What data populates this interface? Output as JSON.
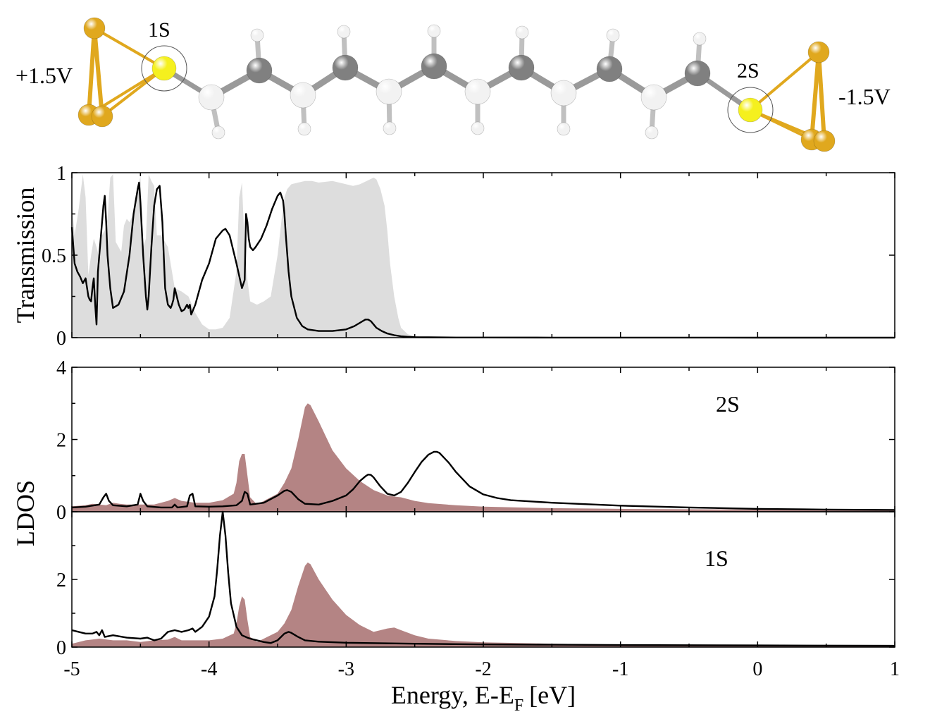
{
  "molecule": {
    "left_voltage": "+1.5V",
    "right_voltage": "-1.5V",
    "left_atom_label": "1S",
    "right_atom_label": "2S",
    "colors": {
      "gold": "#E0A81E",
      "sulfur": "#F5F01E",
      "carbon": "#808080",
      "hydrogen": "#F2F2F2",
      "bond": "#9A9A9A"
    }
  },
  "chart_data": [
    {
      "type": "area",
      "name": "transmission",
      "ylabel": "Transmission",
      "xlim": [
        -5,
        1
      ],
      "ylim": [
        0,
        1
      ],
      "yticks": [
        0,
        0.5,
        1
      ],
      "ytick_labels": [
        "0",
        "0.5",
        "1"
      ],
      "series": [
        {
          "name": "Transmission (filled, gray)",
          "style": "fill",
          "color": "#DDDDDD",
          "x": [
            -5,
            -4.98,
            -4.95,
            -4.92,
            -4.9,
            -4.88,
            -4.86,
            -4.84,
            -4.82,
            -4.8,
            -4.78,
            -4.76,
            -4.74,
            -4.72,
            -4.7,
            -4.68,
            -4.66,
            -4.64,
            -4.62,
            -4.6,
            -4.58,
            -4.55,
            -4.52,
            -4.5,
            -4.48,
            -4.46,
            -4.44,
            -4.42,
            -4.4,
            -4.38,
            -4.35,
            -4.3,
            -4.25,
            -4.2,
            -4.15,
            -4.1,
            -4.05,
            -4,
            -3.95,
            -3.9,
            -3.85,
            -3.8,
            -3.78,
            -3.76,
            -3.74,
            -3.72,
            -3.7,
            -3.65,
            -3.6,
            -3.55,
            -3.5,
            -3.47,
            -3.45,
            -3.43,
            -3.4,
            -3.35,
            -3.3,
            -3.25,
            -3.2,
            -3.1,
            -3,
            -2.95,
            -2.9,
            -2.85,
            -2.8,
            -2.78,
            -2.75,
            -2.72,
            -2.7,
            -2.68,
            -2.65,
            -2.62,
            -2.6,
            -2.55,
            -2.5,
            -2.4,
            -2,
            -1,
            0,
            1
          ],
          "y": [
            0.82,
            0.62,
            0.78,
            0.99,
            0.85,
            0.38,
            0.5,
            0.6,
            0.55,
            0.48,
            0.62,
            0.65,
            0.72,
            0.97,
            0.99,
            0.58,
            0.55,
            0.52,
            0.68,
            0.72,
            0.7,
            0.75,
            0.9,
            0.98,
            0.55,
            0.6,
            0.99,
            0.95,
            0.92,
            0.62,
            0.62,
            0.55,
            0.3,
            0.28,
            0.25,
            0.15,
            0.08,
            0.05,
            0.05,
            0.06,
            0.12,
            0.4,
            0.85,
            0.94,
            0.55,
            0.35,
            0.22,
            0.2,
            0.22,
            0.25,
            0.5,
            0.72,
            0.85,
            0.9,
            0.93,
            0.94,
            0.95,
            0.95,
            0.94,
            0.95,
            0.93,
            0.92,
            0.93,
            0.95,
            0.97,
            0.96,
            0.9,
            0.8,
            0.65,
            0.45,
            0.25,
            0.12,
            0.06,
            0.02,
            0.01,
            0,
            0,
            0,
            0,
            0
          ]
        },
        {
          "name": "Transmission (line, black)",
          "style": "line",
          "color": "#000000",
          "x": [
            -5,
            -4.98,
            -4.96,
            -4.94,
            -4.92,
            -4.9,
            -4.88,
            -4.87,
            -4.86,
            -4.85,
            -4.84,
            -4.83,
            -4.82,
            -4.81,
            -4.79,
            -4.77,
            -4.76,
            -4.75,
            -4.74,
            -4.72,
            -4.7,
            -4.66,
            -4.62,
            -4.58,
            -4.55,
            -4.52,
            -4.51,
            -4.5,
            -4.48,
            -4.46,
            -4.45,
            -4.44,
            -4.42,
            -4.4,
            -4.38,
            -4.36,
            -4.34,
            -4.33,
            -4.32,
            -4.3,
            -4.28,
            -4.27,
            -4.26,
            -4.25,
            -4.22,
            -4.2,
            -4.18,
            -4.16,
            -4.15,
            -4.14,
            -4.13,
            -4.1,
            -4.05,
            -4.0,
            -3.95,
            -3.9,
            -3.88,
            -3.85,
            -3.8,
            -3.76,
            -3.74,
            -3.73,
            -3.72,
            -3.71,
            -3.7,
            -3.68,
            -3.66,
            -3.62,
            -3.58,
            -3.54,
            -3.5,
            -3.48,
            -3.46,
            -3.45,
            -3.44,
            -3.42,
            -3.4,
            -3.36,
            -3.32,
            -3.28,
            -3.2,
            -3.1,
            -3.0,
            -2.94,
            -2.88,
            -2.86,
            -2.84,
            -2.82,
            -2.8,
            -2.78,
            -2.74,
            -2.7,
            -2.65,
            -2.6,
            -2.55,
            -2.5,
            -2.4,
            -2.2,
            -2.0,
            -1.5,
            -1,
            0,
            1
          ],
          "y": [
            0.67,
            0.45,
            0.4,
            0.37,
            0.33,
            0.36,
            0.25,
            0.23,
            0.22,
            0.3,
            0.36,
            0.2,
            0.08,
            0.4,
            0.6,
            0.8,
            0.86,
            0.7,
            0.5,
            0.3,
            0.18,
            0.2,
            0.28,
            0.5,
            0.75,
            0.9,
            0.94,
            0.82,
            0.5,
            0.25,
            0.17,
            0.25,
            0.55,
            0.8,
            0.9,
            0.92,
            0.7,
            0.5,
            0.3,
            0.2,
            0.18,
            0.2,
            0.23,
            0.3,
            0.2,
            0.16,
            0.17,
            0.2,
            0.18,
            0.2,
            0.14,
            0.2,
            0.35,
            0.45,
            0.6,
            0.65,
            0.66,
            0.62,
            0.45,
            0.3,
            0.35,
            0.75,
            0.7,
            0.6,
            0.55,
            0.53,
            0.55,
            0.6,
            0.68,
            0.78,
            0.86,
            0.88,
            0.83,
            0.75,
            0.62,
            0.4,
            0.25,
            0.12,
            0.07,
            0.05,
            0.04,
            0.04,
            0.05,
            0.07,
            0.1,
            0.11,
            0.11,
            0.1,
            0.08,
            0.06,
            0.04,
            0.025,
            0.015,
            0.008,
            0.005,
            0.003,
            0.002,
            0.001,
            0.001,
            0.0005,
            0.0003,
            0.0001,
            0.0001
          ]
        }
      ]
    },
    {
      "type": "area",
      "name": "ldos_2s",
      "ylabel": "LDOS",
      "panel_label": "2S",
      "xlim": [
        -5,
        1
      ],
      "ylim": [
        0,
        4
      ],
      "yticks": [
        0,
        2,
        4
      ],
      "ytick_labels": [
        "0",
        "2",
        "4"
      ],
      "series": [
        {
          "name": "LDOS 2S (filled, brown)",
          "style": "fill",
          "color": "#B48484",
          "x": [
            -5,
            -4.9,
            -4.85,
            -4.8,
            -4.75,
            -4.7,
            -4.65,
            -4.6,
            -4.5,
            -4.4,
            -4.3,
            -4.25,
            -4.2,
            -4.1,
            -4,
            -3.9,
            -3.82,
            -3.8,
            -3.78,
            -3.76,
            -3.74,
            -3.72,
            -3.7,
            -3.65,
            -3.6,
            -3.5,
            -3.45,
            -3.4,
            -3.35,
            -3.3,
            -3.28,
            -3.26,
            -3.24,
            -3.2,
            -3.15,
            -3.1,
            -3.0,
            -2.9,
            -2.8,
            -2.7,
            -2.65,
            -2.6,
            -2.5,
            -2.4,
            -2.2,
            -2.0,
            -1.5,
            -1,
            0,
            1
          ],
          "y": [
            0.15,
            0.18,
            0.22,
            0.2,
            0.18,
            0.25,
            0.22,
            0.2,
            0.2,
            0.2,
            0.3,
            0.38,
            0.3,
            0.25,
            0.25,
            0.32,
            0.5,
            0.8,
            1.4,
            1.6,
            1.6,
            1.0,
            0.4,
            0.2,
            0.3,
            0.5,
            0.8,
            1.2,
            2.0,
            2.9,
            3.0,
            2.95,
            2.8,
            2.5,
            2.1,
            1.7,
            1.2,
            0.85,
            0.6,
            0.45,
            0.42,
            0.4,
            0.3,
            0.24,
            0.18,
            0.14,
            0.1,
            0.08,
            0.06,
            0.05
          ]
        },
        {
          "name": "LDOS 2S (line, black)",
          "style": "line",
          "color": "#000000",
          "x": [
            -5,
            -4.9,
            -4.8,
            -4.77,
            -4.75,
            -4.73,
            -4.7,
            -4.6,
            -4.52,
            -4.5,
            -4.48,
            -4.45,
            -4.35,
            -4.27,
            -4.25,
            -4.23,
            -4.16,
            -4.14,
            -4.12,
            -4.1,
            -4.0,
            -3.9,
            -3.8,
            -3.76,
            -3.74,
            -3.72,
            -3.7,
            -3.6,
            -3.5,
            -3.45,
            -3.43,
            -3.4,
            -3.35,
            -3.3,
            -3.2,
            -3.1,
            -3.0,
            -2.95,
            -2.9,
            -2.86,
            -2.84,
            -2.82,
            -2.8,
            -2.75,
            -2.7,
            -2.65,
            -2.6,
            -2.55,
            -2.5,
            -2.45,
            -2.4,
            -2.36,
            -2.34,
            -2.32,
            -2.3,
            -2.25,
            -2.2,
            -2.1,
            -2.0,
            -1.9,
            -1.8,
            -1.5,
            -1,
            -0.5,
            0,
            0.5,
            1
          ],
          "y": [
            0.12,
            0.14,
            0.2,
            0.4,
            0.5,
            0.3,
            0.18,
            0.15,
            0.2,
            0.5,
            0.3,
            0.15,
            0.12,
            0.12,
            0.2,
            0.12,
            0.15,
            0.45,
            0.5,
            0.15,
            0.14,
            0.15,
            0.18,
            0.3,
            0.55,
            0.5,
            0.2,
            0.25,
            0.45,
            0.58,
            0.6,
            0.55,
            0.35,
            0.22,
            0.2,
            0.3,
            0.45,
            0.62,
            0.85,
            0.98,
            1.03,
            1.02,
            0.95,
            0.7,
            0.5,
            0.45,
            0.55,
            0.8,
            1.1,
            1.38,
            1.58,
            1.66,
            1.66,
            1.63,
            1.55,
            1.35,
            1.1,
            0.7,
            0.48,
            0.38,
            0.32,
            0.25,
            0.17,
            0.12,
            0.08,
            0.06,
            0.05
          ]
        }
      ]
    },
    {
      "type": "area",
      "name": "ldos_1s",
      "xlabel": "Energy, E-E",
      "xlabel_sub": "F",
      "xlabel_unit": "[eV]",
      "panel_label": "1S",
      "xlim": [
        -5,
        1
      ],
      "ylim": [
        0,
        4
      ],
      "yticks": [
        0,
        2
      ],
      "ytick_labels": [
        "0",
        "2"
      ],
      "xticks": [
        -5,
        -4,
        -3,
        -2,
        -1,
        0,
        1
      ],
      "xtick_labels": [
        "-5",
        "-4",
        "-3",
        "-2",
        "-1",
        "0",
        "1"
      ],
      "series": [
        {
          "name": "LDOS 1S (filled, brown)",
          "style": "fill",
          "color": "#B48484",
          "x": [
            -5,
            -4.9,
            -4.8,
            -4.7,
            -4.6,
            -4.5,
            -4.4,
            -4.3,
            -4.25,
            -4.2,
            -4.1,
            -4.0,
            -3.9,
            -3.82,
            -3.8,
            -3.78,
            -3.76,
            -3.74,
            -3.72,
            -3.7,
            -3.65,
            -3.6,
            -3.5,
            -3.45,
            -3.4,
            -3.35,
            -3.3,
            -3.28,
            -3.26,
            -3.24,
            -3.2,
            -3.15,
            -3.1,
            -3.0,
            -2.9,
            -2.8,
            -2.7,
            -2.65,
            -2.6,
            -2.5,
            -2.4,
            -2.2,
            -2.0,
            -1.5,
            -1,
            0,
            1
          ],
          "y": [
            0.1,
            0.2,
            0.25,
            0.2,
            0.2,
            0.15,
            0.2,
            0.22,
            0.3,
            0.2,
            0.2,
            0.2,
            0.25,
            0.4,
            0.7,
            1.2,
            1.5,
            1.4,
            0.8,
            0.3,
            0.15,
            0.25,
            0.45,
            0.7,
            1.1,
            1.8,
            2.4,
            2.5,
            2.45,
            2.3,
            2.0,
            1.7,
            1.4,
            0.95,
            0.65,
            0.45,
            0.55,
            0.58,
            0.5,
            0.35,
            0.25,
            0.18,
            0.14,
            0.1,
            0.08,
            0.06,
            0.05
          ]
        },
        {
          "name": "LDOS 1S (line, black)",
          "style": "line",
          "color": "#000000",
          "x": [
            -5,
            -4.95,
            -4.9,
            -4.85,
            -4.82,
            -4.8,
            -4.78,
            -4.76,
            -4.7,
            -4.6,
            -4.5,
            -4.45,
            -4.4,
            -4.35,
            -4.3,
            -4.25,
            -4.2,
            -4.15,
            -4.12,
            -4.1,
            -4.05,
            -4.0,
            -3.96,
            -3.94,
            -3.92,
            -3.9,
            -3.88,
            -3.86,
            -3.84,
            -3.8,
            -3.76,
            -3.72,
            -3.7,
            -3.65,
            -3.6,
            -3.55,
            -3.5,
            -3.45,
            -3.42,
            -3.4,
            -3.35,
            -3.3,
            -3.2,
            -3.0,
            -2.5,
            -2,
            -1.5,
            -1,
            0,
            1
          ],
          "y": [
            0.5,
            0.45,
            0.4,
            0.4,
            0.45,
            0.35,
            0.5,
            0.3,
            0.35,
            0.28,
            0.25,
            0.28,
            0.2,
            0.25,
            0.45,
            0.5,
            0.45,
            0.5,
            0.55,
            0.45,
            0.6,
            0.9,
            1.5,
            2.3,
            3.3,
            4.0,
            3.3,
            2.2,
            1.3,
            0.6,
            0.35,
            0.28,
            0.25,
            0.2,
            0.15,
            0.12,
            0.2,
            0.4,
            0.45,
            0.42,
            0.3,
            0.2,
            0.16,
            0.13,
            0.1,
            0.08,
            0.07,
            0.06,
            0.05,
            0.04
          ]
        }
      ]
    }
  ]
}
